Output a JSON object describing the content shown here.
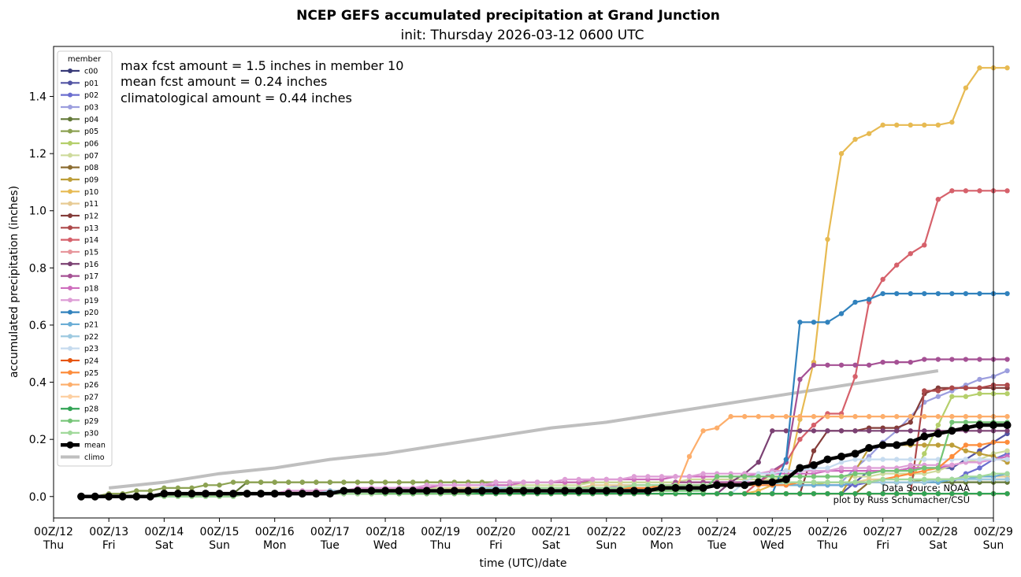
{
  "chart_data": {
    "type": "line",
    "title": "NCEP GEFS accumulated precipitation at Grand Junction",
    "subtitle": "init: Thursday 2026-03-12 0600 UTC",
    "xlabel": "time (UTC)/date",
    "ylabel": "accumulated precipitation (inches)",
    "xlim": [
      0,
      17
    ],
    "ylim": [
      -0.075,
      1.575
    ],
    "x_unit": "days since 00Z/12",
    "yticks": [
      0.0,
      0.2,
      0.4,
      0.6,
      0.8,
      1.0,
      1.2,
      1.4
    ],
    "ytick_labels": [
      "0.0",
      "0.2",
      "0.4",
      "0.6",
      "0.8",
      "1.0",
      "1.2",
      "1.4"
    ],
    "xticks": [
      {
        "date": "00Z/12",
        "day": "Thu"
      },
      {
        "date": "00Z/13",
        "day": "Fri"
      },
      {
        "date": "00Z/14",
        "day": "Sat"
      },
      {
        "date": "00Z/15",
        "day": "Sun"
      },
      {
        "date": "00Z/16",
        "day": "Mon"
      },
      {
        "date": "00Z/17",
        "day": "Tue"
      },
      {
        "date": "00Z/18",
        "day": "Wed"
      },
      {
        "date": "00Z/19",
        "day": "Thu"
      },
      {
        "date": "00Z/20",
        "day": "Fri"
      },
      {
        "date": "00Z/21",
        "day": "Sat"
      },
      {
        "date": "00Z/22",
        "day": "Sun"
      },
      {
        "date": "00Z/23",
        "day": "Mon"
      },
      {
        "date": "00Z/24",
        "day": "Tue"
      },
      {
        "date": "00Z/25",
        "day": "Wed"
      },
      {
        "date": "00Z/26",
        "day": "Thu"
      },
      {
        "date": "00Z/27",
        "day": "Fri"
      },
      {
        "date": "00Z/28",
        "day": "Sat"
      },
      {
        "date": "00Z/29",
        "day": "Sun"
      }
    ],
    "annotations": {
      "max": "max fcst amount = 1.5 inches in member 10",
      "mean": "mean fcst amount = 0.24 inches",
      "climo": "climatological amount = 0.44 inches"
    },
    "credits": {
      "source": "Data Source: NOAA",
      "author": "plot by Russ Schumacher/CSU"
    },
    "legend_title": "member",
    "legend_location": "upper-left",
    "time_start": 0.5,
    "time_step": 0.25,
    "series": [
      {
        "name": "c00",
        "color": "#393b79",
        "breaks": [
          [
            3.5,
            0.01
          ]
        ]
      },
      {
        "name": "p01",
        "color": "#5254a3",
        "breaks": [
          [
            3.5,
            0.01
          ],
          [
            14.25,
            0.01
          ],
          [
            14.75,
            0.09
          ],
          [
            16.25,
            0.1
          ],
          [
            17.25,
            0.22
          ]
        ]
      },
      {
        "name": "p02",
        "color": "#6b6ecf",
        "breaks": [
          [
            3.5,
            0.01
          ],
          [
            16.25,
            0.05
          ],
          [
            17.25,
            0.15
          ]
        ]
      },
      {
        "name": "p03",
        "color": "#9c9ede",
        "breaks": [
          [
            3.5,
            0.01
          ],
          [
            14.25,
            0.05
          ],
          [
            15.75,
            0.32
          ],
          [
            15.75,
            0.33
          ],
          [
            16.25,
            0.37
          ],
          [
            17.25,
            0.44
          ]
        ]
      },
      {
        "name": "p04",
        "color": "#637939",
        "breaks": [
          [
            3.25,
            0.01
          ],
          [
            3.5,
            0.05
          ],
          [
            14.5,
            0.05
          ],
          [
            15.0,
            0.05
          ]
        ]
      },
      {
        "name": "p05",
        "color": "#8ca252",
        "breaks": [
          [
            3.5,
            0.05
          ],
          [
            14.0,
            0.05
          ],
          [
            15.0,
            0.05
          ],
          [
            17.25,
            0.07
          ]
        ]
      },
      {
        "name": "p06",
        "color": "#b5cf6b",
        "breaks": [
          [
            3.5,
            0.01
          ],
          [
            15.5,
            0.05
          ],
          [
            16.25,
            0.35
          ],
          [
            17.25,
            0.36
          ]
        ]
      },
      {
        "name": "p07",
        "color": "#cedb9c",
        "breaks": [
          [
            3.5,
            0.01
          ],
          [
            15.75,
            0.08
          ],
          [
            16.5,
            0.12
          ],
          [
            17.25,
            0.16
          ]
        ]
      },
      {
        "name": "p08",
        "color": "#8c6d31",
        "breaks": [
          [
            3.5,
            0.01
          ],
          [
            14.5,
            0.01
          ],
          [
            14.75,
            0.05
          ],
          [
            17.25,
            0.06
          ]
        ]
      },
      {
        "name": "p09",
        "color": "#bd9e39",
        "breaks": [
          [
            3.5,
            0.01
          ],
          [
            14.25,
            0.01
          ],
          [
            14.75,
            0.17
          ],
          [
            15.0,
            0.18
          ],
          [
            16.25,
            0.18
          ],
          [
            17.25,
            0.12
          ]
        ]
      },
      {
        "name": "p10",
        "color": "#e7ba52",
        "breaks": [
          [
            3.5,
            0.01
          ],
          [
            12.5,
            0.01
          ],
          [
            13.25,
            0.05
          ],
          [
            13.5,
            0.27
          ],
          [
            13.75,
            0.47
          ],
          [
            14.0,
            0.9
          ],
          [
            14.25,
            1.2
          ],
          [
            14.5,
            1.25
          ],
          [
            14.75,
            1.27
          ],
          [
            15.0,
            1.3
          ],
          [
            16.0,
            1.3
          ],
          [
            16.25,
            1.31
          ],
          [
            16.5,
            1.43
          ],
          [
            16.75,
            1.5
          ]
        ]
      },
      {
        "name": "p11",
        "color": "#e7cb94",
        "breaks": [
          [
            3.5,
            0.01
          ],
          [
            16.0,
            0.06
          ],
          [
            17.25,
            0.07
          ]
        ]
      },
      {
        "name": "p12",
        "color": "#843c39",
        "breaks": [
          [
            3.5,
            0.01
          ],
          [
            13.5,
            0.01
          ],
          [
            13.75,
            0.16
          ],
          [
            14.0,
            0.23
          ],
          [
            15.25,
            0.24
          ],
          [
            15.5,
            0.26
          ],
          [
            15.75,
            0.36
          ],
          [
            16.0,
            0.38
          ],
          [
            17.25,
            0.38
          ]
        ]
      },
      {
        "name": "p13",
        "color": "#ad494a",
        "breaks": [
          [
            3.5,
            0.01
          ],
          [
            15.5,
            0.01
          ],
          [
            15.75,
            0.37
          ],
          [
            16.75,
            0.38
          ],
          [
            17.25,
            0.39
          ]
        ]
      },
      {
        "name": "p14",
        "color": "#d6616b",
        "breaks": [
          [
            3.5,
            0.01
          ],
          [
            12.5,
            0.01
          ],
          [
            13.25,
            0.12
          ],
          [
            13.5,
            0.2
          ],
          [
            14.0,
            0.29
          ],
          [
            14.25,
            0.29
          ],
          [
            14.5,
            0.42
          ],
          [
            14.75,
            0.68
          ],
          [
            15.0,
            0.76
          ],
          [
            15.25,
            0.81
          ],
          [
            15.5,
            0.85
          ],
          [
            15.75,
            0.88
          ],
          [
            16.0,
            1.04
          ],
          [
            16.25,
            1.07
          ]
        ]
      },
      {
        "name": "p15",
        "color": "#e7969c",
        "breaks": [
          [
            3.5,
            0.005
          ],
          [
            17.25,
            0.005
          ]
        ]
      },
      {
        "name": "p16",
        "color": "#7b4173",
        "breaks": [
          [
            3.5,
            0.01
          ],
          [
            12.0,
            0.01
          ],
          [
            12.75,
            0.12
          ],
          [
            13.0,
            0.23
          ],
          [
            17.25,
            0.23
          ]
        ]
      },
      {
        "name": "p17",
        "color": "#a55194",
        "breaks": [
          [
            3.5,
            0.01
          ],
          [
            11.0,
            0.02
          ],
          [
            11.25,
            0.05
          ],
          [
            12.75,
            0.05
          ],
          [
            13.25,
            0.12
          ],
          [
            13.5,
            0.41
          ],
          [
            13.75,
            0.46
          ],
          [
            14.0,
            0.46
          ],
          [
            14.75,
            0.46
          ],
          [
            15.0,
            0.47
          ],
          [
            16.25,
            0.48
          ]
        ]
      },
      {
        "name": "p18",
        "color": "#ce6dbd",
        "breaks": [
          [
            3.5,
            0.01
          ],
          [
            16.0,
            0.1
          ],
          [
            17.25,
            0.14
          ]
        ]
      },
      {
        "name": "p19",
        "color": "#de9ed6",
        "breaks": [
          [
            3.5,
            0.01
          ],
          [
            16.0,
            0.11
          ],
          [
            17.25,
            0.13
          ]
        ]
      },
      {
        "name": "p20",
        "color": "#3182bd",
        "breaks": [
          [
            3.5,
            0.01
          ],
          [
            13.0,
            0.01
          ],
          [
            13.25,
            0.13
          ],
          [
            13.5,
            0.61
          ],
          [
            14.0,
            0.61
          ],
          [
            14.25,
            0.64
          ],
          [
            14.5,
            0.68
          ],
          [
            14.75,
            0.69
          ],
          [
            15.0,
            0.71
          ],
          [
            17.25,
            0.71
          ]
        ]
      },
      {
        "name": "p21",
        "color": "#6baed6",
        "breaks": [
          [
            3.5,
            0.01
          ],
          [
            16.0,
            0.05
          ],
          [
            17.25,
            0.08
          ]
        ]
      },
      {
        "name": "p22",
        "color": "#9ecae1",
        "breaks": [
          [
            3.5,
            0.01
          ],
          [
            17.25,
            0.06
          ]
        ]
      },
      {
        "name": "p23",
        "color": "#c6dbef",
        "breaks": [
          [
            3.5,
            0.01
          ],
          [
            12.25,
            0.01
          ],
          [
            12.75,
            0.08
          ],
          [
            14.0,
            0.1
          ],
          [
            14.5,
            0.13
          ],
          [
            16.25,
            0.13
          ],
          [
            17.25,
            0.13
          ]
        ]
      },
      {
        "name": "p24",
        "color": "#e6550d",
        "breaks": [
          [
            3.5,
            0.01
          ],
          [
            17.25,
            0.01
          ]
        ]
      },
      {
        "name": "p25",
        "color": "#fd8d3c",
        "breaks": [
          [
            3.5,
            0.005
          ],
          [
            14.75,
            0.05
          ],
          [
            16.0,
            0.1
          ],
          [
            16.5,
            0.18
          ],
          [
            17.25,
            0.19
          ]
        ]
      },
      {
        "name": "p26",
        "color": "#fdae6b",
        "breaks": [
          [
            3.5,
            0.01
          ],
          [
            11.25,
            0.02
          ],
          [
            11.5,
            0.14
          ],
          [
            11.75,
            0.23
          ],
          [
            12.0,
            0.24
          ],
          [
            12.25,
            0.28
          ],
          [
            17.25,
            0.28
          ]
        ]
      },
      {
        "name": "p27",
        "color": "#fdd0a2",
        "breaks": [
          [
            3.5,
            0.005
          ],
          [
            17.25,
            0.01
          ]
        ]
      },
      {
        "name": "p28",
        "color": "#31a354",
        "breaks": [
          [
            3.5,
            0.005
          ],
          [
            17.25,
            0.01
          ]
        ]
      },
      {
        "name": "p29",
        "color": "#74c476",
        "breaks": [
          [
            3.5,
            0.01
          ],
          [
            11.75,
            0.02
          ],
          [
            12.0,
            0.07
          ],
          [
            14.0,
            0.07
          ],
          [
            16.0,
            0.1
          ],
          [
            16.25,
            0.26
          ],
          [
            17.25,
            0.26
          ]
        ]
      },
      {
        "name": "p30",
        "color": "#a1d99b",
        "breaks": [
          [
            3.5,
            0.005
          ],
          [
            16.0,
            0.06
          ],
          [
            17.25,
            0.08
          ]
        ]
      }
    ],
    "mean": {
      "name": "mean",
      "color": "#000000",
      "breaks": [
        [
          3.25,
          0.0
        ],
        [
          3.5,
          0.015
        ],
        [
          12.0,
          0.015
        ],
        [
          12.5,
          0.03
        ],
        [
          13.0,
          0.06
        ],
        [
          13.5,
          0.1
        ],
        [
          14.0,
          0.13
        ],
        [
          14.5,
          0.16
        ],
        [
          15.0,
          0.18
        ],
        [
          15.5,
          0.2
        ],
        [
          16.0,
          0.22
        ],
        [
          16.25,
          0.235
        ]
      ]
    },
    "climo": {
      "name": "climo",
      "color": "#bfbfbf",
      "x": [
        1.0,
        2.0,
        3.0,
        4.0,
        5.0,
        6.0,
        7.0,
        8.0,
        9.0,
        10.0,
        11.0,
        12.0,
        13.0,
        14.0,
        15.0,
        16.0
      ],
      "values": [
        0.03,
        0.05,
        0.08,
        0.1,
        0.13,
        0.15,
        0.18,
        0.21,
        0.24,
        0.26,
        0.29,
        0.32,
        0.35,
        0.38,
        0.41,
        0.44
      ]
    }
  }
}
